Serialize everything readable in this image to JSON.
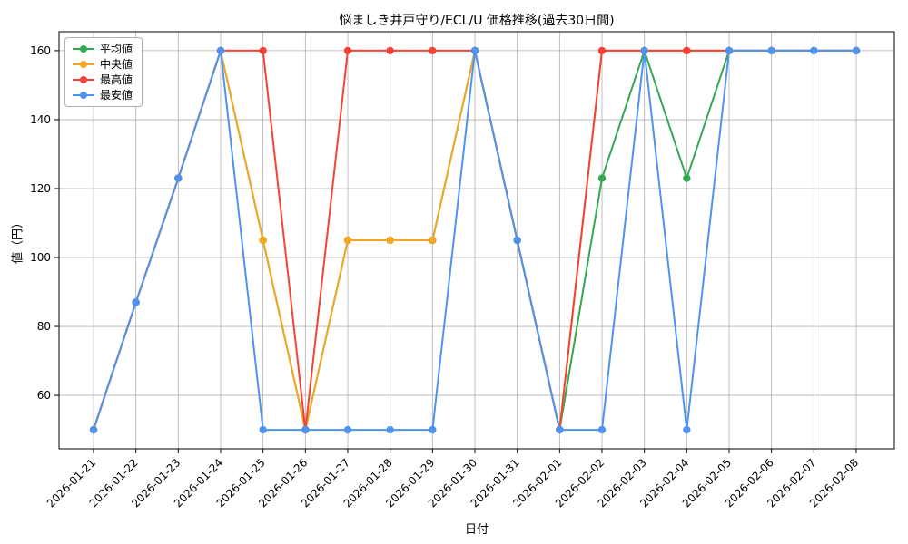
{
  "chart": {
    "title": "悩ましき井戸守り/ECL/U 価格推移(過去30日間)",
    "xlabel": "日付",
    "ylabel": "値（円）"
  },
  "chart_data": {
    "type": "line",
    "title": "悩ましき井戸守り/ECL/U 価格推移(過去30日間)",
    "xlabel": "日付",
    "ylabel": "値（円）",
    "ylim": [
      44.5,
      165.5
    ],
    "yticks": [
      60,
      80,
      100,
      120,
      140,
      160
    ],
    "grid": true,
    "legend_position": "upper-left",
    "marker": "circle",
    "categories": [
      "2026-01-21",
      "2026-01-22",
      "2026-01-23",
      "2026-01-24",
      "2026-01-25",
      "2026-01-26",
      "2026-01-27",
      "2026-01-28",
      "2026-01-29",
      "2026-01-30",
      "2026-01-31",
      "2026-02-01",
      "2026-02-02",
      "2026-02-03",
      "2026-02-04",
      "2026-02-05",
      "2026-02-06",
      "2026-02-07",
      "2026-02-08"
    ],
    "series": [
      {
        "name": "平均値",
        "color": "#34a853",
        "values": [
          50,
          87,
          123,
          160,
          105,
          50,
          105,
          105,
          105,
          160,
          105,
          50,
          123,
          160,
          123,
          160,
          160,
          160,
          160
        ]
      },
      {
        "name": "中央値",
        "color": "#f5a623",
        "values": [
          50,
          87,
          123,
          160,
          105,
          50,
          105,
          105,
          105,
          160,
          105,
          50,
          160,
          160,
          160,
          160,
          160,
          160,
          160
        ]
      },
      {
        "name": "最高値",
        "color": "#f44336",
        "values": [
          50,
          87,
          123,
          160,
          160,
          50,
          160,
          160,
          160,
          160,
          105,
          50,
          160,
          160,
          160,
          160,
          160,
          160,
          160
        ]
      },
      {
        "name": "最安値",
        "color": "#4d94f0",
        "values": [
          50,
          87,
          123,
          160,
          50,
          50,
          50,
          50,
          50,
          160,
          105,
          50,
          50,
          160,
          50,
          160,
          160,
          160,
          160
        ]
      }
    ]
  }
}
